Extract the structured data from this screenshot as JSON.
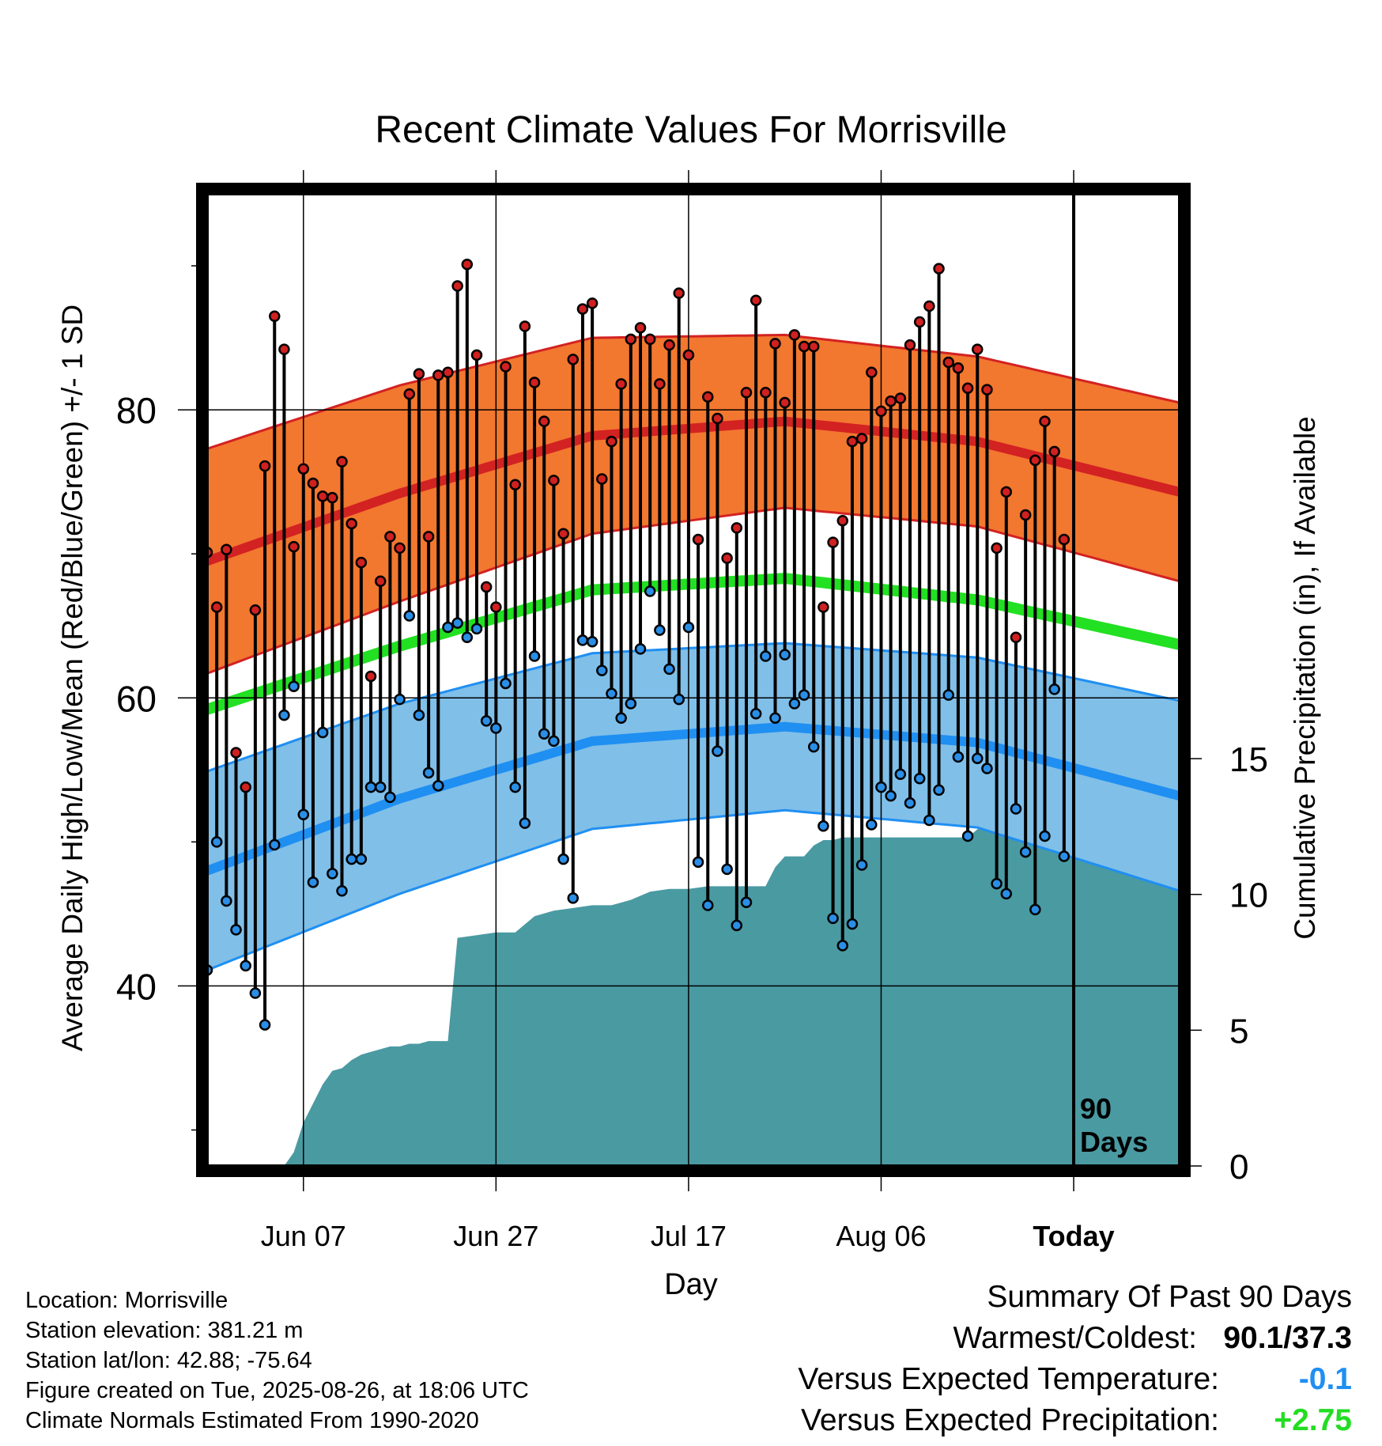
{
  "chart_data": {
    "type": "line",
    "title": "Recent Climate Values For Morrisville",
    "xlabel": "Day",
    "ylabel": "Average Daily High/Low/Mean (Red/Blue/Green) +/- 1 SD",
    "ylabel_right": "Cumulative Precipitation (in), If Available",
    "x_ticks": [
      "Jun 07",
      "Jun 27",
      "Jul 17",
      "Aug 06",
      "Today"
    ],
    "y_ticks": [
      "40",
      "60",
      "80"
    ],
    "y2_ticks": [
      "0",
      "5",
      "10",
      "15"
    ],
    "ylim": [
      27.5,
      95
    ],
    "y2lim": [
      0,
      35.8
    ],
    "x_range_days": [
      0,
      101
    ],
    "today_day": 90,
    "today_label": "90\nDays",
    "grid": true,
    "normals": {
      "days": [
        0,
        20,
        40,
        60,
        80,
        101
      ],
      "high_mean": [
        69.5,
        74.2,
        78.2,
        79.2,
        77.8,
        74.3
      ],
      "high_sd": [
        7.8,
        7.5,
        6.8,
        6.0,
        5.9,
        6.2
      ],
      "mean": [
        59.2,
        63.6,
        67.5,
        68.3,
        66.8,
        63.7
      ],
      "low_mean": [
        48.0,
        53.0,
        57.0,
        58.0,
        56.9,
        53.2
      ],
      "low_sd": [
        6.9,
        6.6,
        6.1,
        5.8,
        5.9,
        6.6
      ]
    },
    "daily_highs": [
      70.1,
      66.3,
      70.3,
      56.2,
      53.8,
      66.1,
      76.1,
      86.5,
      84.2,
      70.5,
      75.9,
      74.9,
      74.0,
      73.9,
      76.4,
      72.1,
      69.4,
      61.5,
      68.1,
      71.2,
      70.4,
      81.1,
      82.5,
      71.2,
      82.4,
      82.6,
      88.6,
      90.1,
      83.8,
      67.7,
      66.3,
      83.0,
      74.8,
      85.8,
      81.9,
      79.2,
      75.1,
      71.4,
      83.5,
      87.0,
      87.4,
      75.2,
      77.8,
      81.8,
      84.9,
      85.7,
      84.9,
      81.8,
      84.5,
      88.1,
      83.8,
      71.0,
      80.9,
      79.4,
      69.7,
      71.8,
      81.2,
      87.6,
      81.2,
      84.6,
      80.5,
      85.2,
      84.4,
      84.4,
      66.3,
      70.8,
      72.3,
      77.8,
      78.0,
      82.6,
      79.9,
      80.6,
      80.8,
      84.5,
      86.1,
      87.2,
      89.8,
      83.3,
      82.9,
      81.5,
      84.2,
      81.4,
      70.4,
      74.3,
      64.2,
      72.7,
      76.5,
      79.2,
      77.1,
      71.0
    ],
    "daily_lows": [
      41.1,
      50.0,
      45.9,
      43.9,
      41.4,
      39.5,
      37.3,
      49.8,
      58.8,
      60.8,
      51.9,
      47.2,
      57.6,
      47.8,
      46.6,
      48.8,
      48.8,
      53.8,
      53.8,
      53.1,
      59.9,
      65.7,
      58.8,
      54.8,
      53.9,
      64.9,
      65.2,
      64.2,
      64.8,
      58.4,
      57.9,
      61.0,
      53.8,
      51.3,
      62.9,
      57.5,
      57.0,
      48.8,
      46.1,
      64.0,
      63.9,
      61.9,
      60.3,
      58.6,
      59.6,
      63.4,
      67.4,
      64.7,
      62.0,
      59.9,
      64.9,
      48.6,
      45.6,
      56.3,
      48.1,
      44.2,
      45.8,
      58.9,
      62.9,
      58.6,
      63.0,
      59.6,
      60.2,
      56.6,
      51.1,
      44.7,
      42.8,
      44.3,
      48.4,
      51.2,
      53.8,
      53.2,
      54.7,
      52.7,
      54.4,
      51.5,
      53.6,
      60.2,
      55.9,
      50.4,
      55.8,
      55.1,
      47.1,
      46.4,
      52.3,
      49.3,
      45.3,
      50.4,
      60.6,
      49.0
    ],
    "precip": {
      "days": [
        0,
        8,
        9,
        10,
        11,
        12,
        13,
        14,
        15,
        16,
        17,
        18,
        19,
        20,
        21,
        22,
        23,
        24,
        25,
        26,
        28,
        30,
        32,
        34,
        36,
        38,
        40,
        42,
        44,
        46,
        48,
        50,
        52,
        54,
        56,
        58,
        59,
        60,
        62,
        63,
        64,
        65,
        66,
        68,
        70,
        72,
        74,
        76,
        78,
        79,
        80,
        81,
        82,
        84,
        85,
        86,
        87,
        88,
        89,
        90,
        101
      ],
      "values": [
        0,
        0,
        0.5,
        1.6,
        2.3,
        3.0,
        3.5,
        3.6,
        3.9,
        4.1,
        4.2,
        4.3,
        4.4,
        4.4,
        4.5,
        4.5,
        4.6,
        4.6,
        4.6,
        8.4,
        8.5,
        8.6,
        8.6,
        9.2,
        9.4,
        9.5,
        9.6,
        9.6,
        9.8,
        10.1,
        10.2,
        10.2,
        10.3,
        10.3,
        10.3,
        10.3,
        11.0,
        11.4,
        11.4,
        11.8,
        12.0,
        12.0,
        12.1,
        12.1,
        12.1,
        12.1,
        12.1,
        12.1,
        12.1,
        12.1,
        12.4,
        12.6,
        12.6,
        12.8,
        13.6,
        14.5,
        14.5,
        14.5,
        15.0,
        15.0,
        15.0
      ]
    }
  },
  "colors": {
    "high_band": "#f2772f",
    "high_line": "#d32222",
    "low_band": "#80bfe8",
    "low_line": "#1f8ff2",
    "mean_line": "#22e022",
    "precip_fill": "#4a9aa2",
    "high_dot": "#d02020",
    "low_dot": "#2a8ee6"
  },
  "info": {
    "location": "Location: Morrisville",
    "elevation": "Station elevation: 381.21 m",
    "latlon": "Station lat/lon: 42.88; -75.64",
    "created": "Figure created on Tue, 2025-08-26, at 18:06 UTC",
    "normals": "Climate Normals Estimated From 1990-2020"
  },
  "summary": {
    "title": "Summary Of Past 90 Days",
    "warmest_label": "Warmest/Coldest:",
    "warmest_value": "90.1/37.3",
    "temp_label": "Versus Expected Temperature:",
    "temp_value": "-0.1",
    "temp_color": "#1f8ff2",
    "precip_label": "Versus Expected Precipitation:",
    "precip_value": "+2.75",
    "precip_color": "#22dd22"
  }
}
